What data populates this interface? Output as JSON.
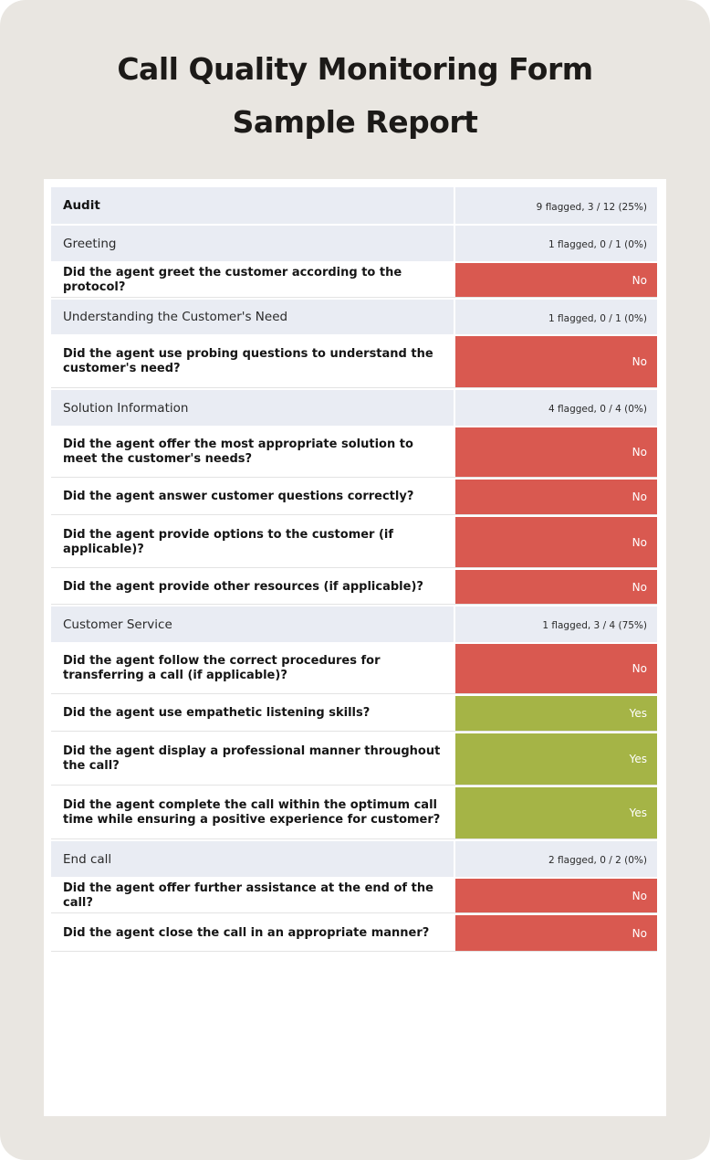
{
  "title_line1": "Call Quality Monitoring Form",
  "title_line2": "Sample Report",
  "rows": [
    {
      "kind": "section",
      "label": "Audit",
      "summary": "9 flagged, 3 / 12 (25%)"
    },
    {
      "kind": "section",
      "label": "Greeting",
      "summary": "1 flagged, 0 / 1 (0%)"
    },
    {
      "kind": "question",
      "label": "Did the agent greet the customer according to the protocol?",
      "answer": "No"
    },
    {
      "kind": "section",
      "label": "Understanding the Customer's Need",
      "summary": "1 flagged, 0 / 1 (0%)"
    },
    {
      "kind": "question",
      "label": "Did the agent use probing questions to understand the customer's need?",
      "answer": "No"
    },
    {
      "kind": "section",
      "label": "Solution Information",
      "summary": "4 flagged, 0 / 4 (0%)"
    },
    {
      "kind": "question",
      "label": "Did the agent offer the most appropriate solution to meet the customer's needs?",
      "answer": "No"
    },
    {
      "kind": "question",
      "label": "Did the agent answer customer questions correctly?",
      "answer": "No"
    },
    {
      "kind": "question",
      "label": "Did the agent provide options to the customer (if applicable)?",
      "answer": "No"
    },
    {
      "kind": "question",
      "label": "Did the agent provide other resources (if applicable)?",
      "answer": "No"
    },
    {
      "kind": "section",
      "label": "Customer Service",
      "summary": "1 flagged, 3 / 4 (75%)"
    },
    {
      "kind": "question",
      "label": "Did the agent follow the correct procedures for transferring a call (if applicable)?",
      "answer": "No"
    },
    {
      "kind": "question",
      "label": "Did the agent use empathetic listening skills?",
      "answer": "Yes"
    },
    {
      "kind": "question",
      "label": "Did the agent display a professional manner throughout the call?",
      "answer": "Yes"
    },
    {
      "kind": "question",
      "label": "Did the agent complete the call within the optimum call time while ensuring a positive experience for customer?",
      "answer": "Yes"
    },
    {
      "kind": "section",
      "label": "End call",
      "summary": "2 flagged, 0 / 2 (0%)"
    },
    {
      "kind": "question",
      "label": "Did the agent offer further assistance at the end of the call?",
      "answer": "No"
    },
    {
      "kind": "question",
      "label": "Did the agent close the call in an appropriate manner?",
      "answer": "No"
    }
  ]
}
